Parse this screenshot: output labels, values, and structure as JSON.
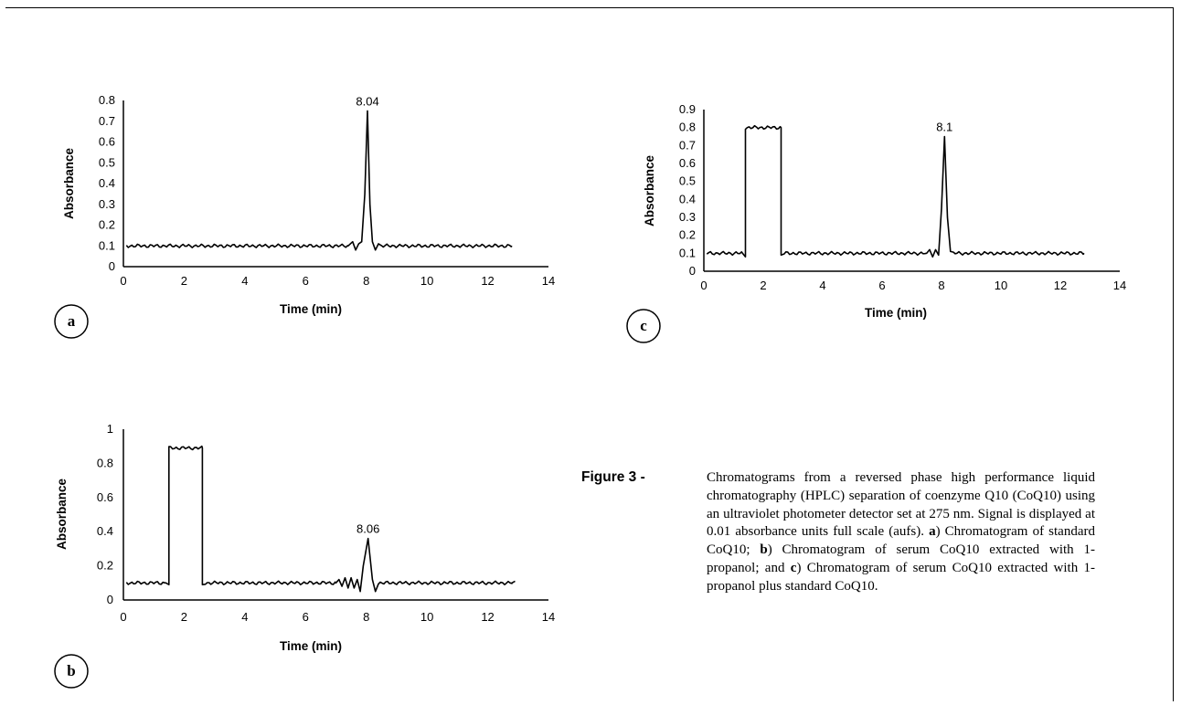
{
  "figure": {
    "label": "Figure 3 -",
    "caption_parts": {
      "intro": "Chromatograms from a reversed phase high performance liquid chromatography (HPLC) separation of coenzyme Q10 (CoQ10) using an ultraviolet photometer detector set at 275 nm. Signal is displayed at 0.01 absorbance units full scale (aufs).",
      "a_letter": "a",
      "a_text": ") Chromatogram of standard CoQ10;",
      "b_letter": "b",
      "b_text": ") Chromatogram of serum CoQ10 extracted with 1-propanol; and",
      "c_letter": "c",
      "c_text": ") Chromatogram of serum CoQ10 extracted with 1-propanol plus standard CoQ10."
    }
  },
  "chart_data": [
    {
      "panel": "a",
      "type": "line",
      "xlabel": "Time (min)",
      "ylabel": "Absorbance",
      "xlim": [
        0,
        14
      ],
      "ylim": [
        0,
        0.8
      ],
      "xticks": [
        "0",
        "2",
        "4",
        "6",
        "8",
        "10",
        "12",
        "14"
      ],
      "yticks": [
        "0",
        "0.1",
        "0.2",
        "0.3",
        "0.4",
        "0.5",
        "0.6",
        "0.7",
        "0.8"
      ],
      "annotations": [
        {
          "text": "8.04",
          "x": 8.04,
          "y": 0.75
        }
      ],
      "grid": false,
      "series": [
        {
          "x": [
            0.1,
            7.4,
            7.55,
            7.65,
            7.75,
            7.85,
            7.95,
            8.04,
            8.12,
            8.2,
            8.3,
            8.4,
            8.5,
            12.8
          ],
          "y": [
            0.1,
            0.1,
            0.12,
            0.08,
            0.11,
            0.12,
            0.35,
            0.75,
            0.3,
            0.12,
            0.08,
            0.11,
            0.1,
            0.1
          ]
        }
      ]
    },
    {
      "panel": "b",
      "type": "line",
      "xlabel": "Time (min)",
      "ylabel": "Absorbance",
      "xlim": [
        0,
        14
      ],
      "ylim": [
        0,
        1
      ],
      "xticks": [
        "0",
        "2",
        "4",
        "6",
        "8",
        "10",
        "12",
        "14"
      ],
      "yticks": [
        "0",
        "0.2",
        "0.4",
        "0.6",
        "0.8",
        "1"
      ],
      "annotations": [
        {
          "text": "8.06",
          "x": 8.06,
          "y": 0.36
        }
      ],
      "grid": false,
      "series": [
        {
          "x": [
            0.1,
            1.4,
            1.5,
            1.5,
            2.6,
            2.6,
            2.7,
            7.0,
            7.1,
            7.2,
            7.3,
            7.4,
            7.5,
            7.6,
            7.7,
            7.8,
            7.9,
            8.06,
            8.2,
            8.3,
            8.4,
            12.8,
            12.9
          ],
          "y": [
            0.1,
            0.1,
            0.09,
            0.89,
            0.89,
            0.09,
            0.1,
            0.1,
            0.12,
            0.08,
            0.13,
            0.07,
            0.13,
            0.07,
            0.12,
            0.05,
            0.2,
            0.36,
            0.12,
            0.05,
            0.1,
            0.1,
            0.11
          ]
        }
      ]
    },
    {
      "panel": "c",
      "type": "line",
      "xlabel": "Time (min)",
      "ylabel": "Absorbance",
      "xlim": [
        0,
        14
      ],
      "ylim": [
        0,
        0.9
      ],
      "xticks": [
        "0",
        "2",
        "4",
        "6",
        "8",
        "10",
        "12",
        "14"
      ],
      "yticks": [
        "0",
        "0.1",
        "0.2",
        "0.3",
        "0.4",
        "0.5",
        "0.6",
        "0.7",
        "0.8",
        "0.9"
      ],
      "annotations": [
        {
          "text": "8.1",
          "x": 8.1,
          "y": 0.75
        }
      ],
      "grid": false,
      "series": [
        {
          "x": [
            0.1,
            1.3,
            1.4,
            1.4,
            2.6,
            2.6,
            2.7,
            7.5,
            7.6,
            7.7,
            7.8,
            7.9,
            8.0,
            8.1,
            8.2,
            8.3,
            8.4,
            12.8
          ],
          "y": [
            0.1,
            0.1,
            0.08,
            0.8,
            0.8,
            0.09,
            0.1,
            0.1,
            0.12,
            0.08,
            0.12,
            0.09,
            0.35,
            0.75,
            0.3,
            0.11,
            0.1,
            0.1
          ]
        }
      ]
    }
  ]
}
